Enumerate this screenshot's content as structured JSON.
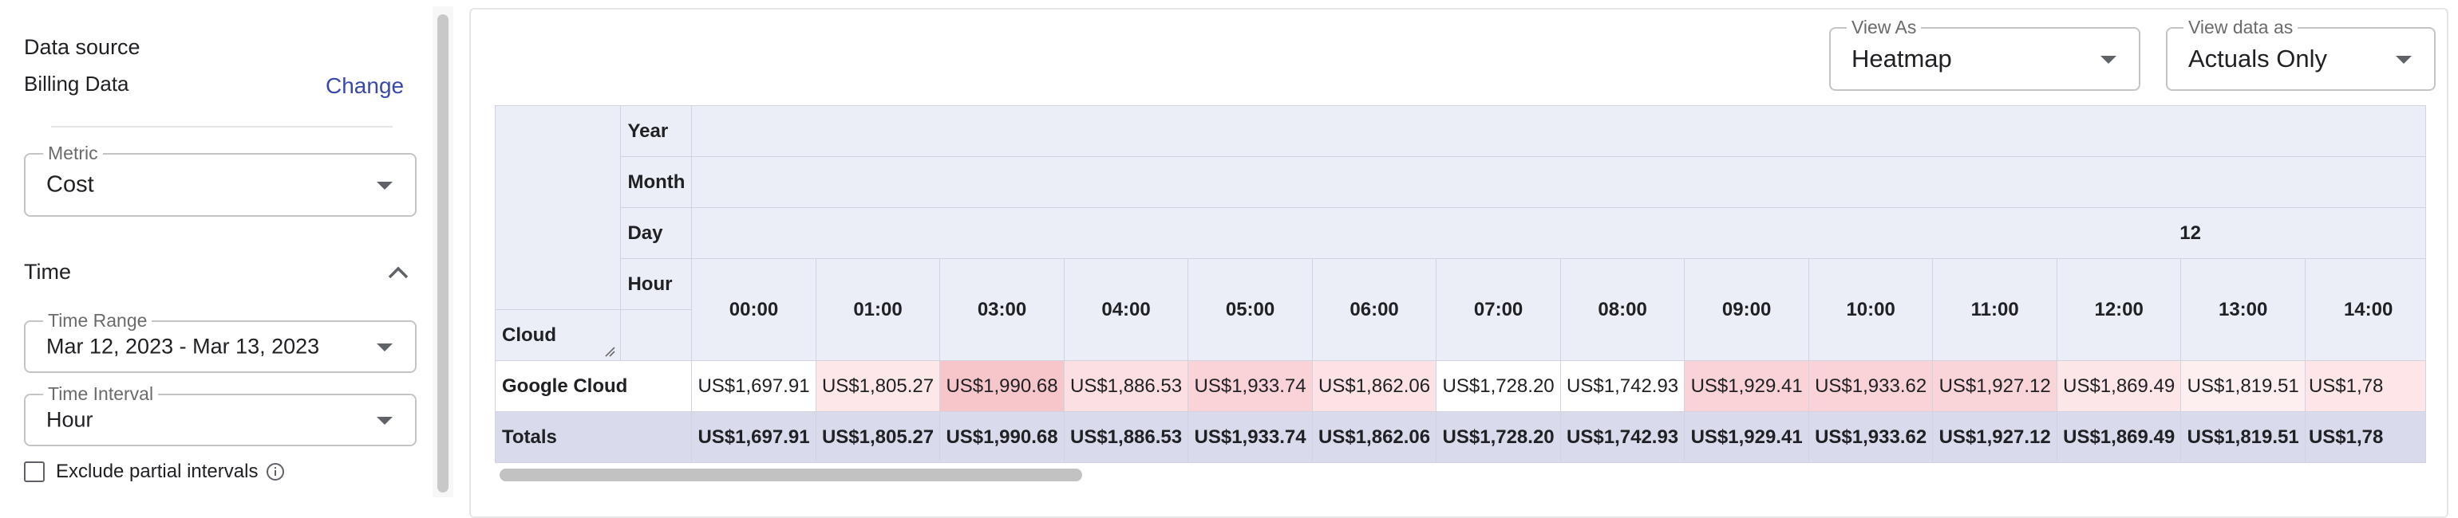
{
  "left_panel": {
    "data_source": {
      "title": "Data source",
      "value": "Billing Data",
      "change_label": "Change"
    },
    "metric": {
      "label": "Metric",
      "value": "Cost"
    },
    "time": {
      "title": "Time",
      "range": {
        "label": "Time Range",
        "value": "Mar 12, 2023 - Mar 13, 2023"
      },
      "interval": {
        "label": "Time Interval",
        "value": "Hour"
      },
      "exclude_partial": {
        "label": "Exclude partial intervals",
        "checked": false
      }
    }
  },
  "controls": {
    "view_as": {
      "label": "View As",
      "value": "Heatmap"
    },
    "view_data_as": {
      "label": "View data as",
      "value": "Actuals Only"
    }
  },
  "pivot": {
    "column_dims": [
      "Year",
      "Month",
      "Day",
      "Hour"
    ],
    "row_dim": "Cloud",
    "day_value": "12",
    "hours": [
      "00:00",
      "01:00",
      "03:00",
      "04:00",
      "05:00",
      "06:00",
      "07:00",
      "08:00",
      "09:00",
      "10:00",
      "11:00",
      "12:00",
      "13:00",
      "14:00"
    ],
    "rows": [
      {
        "label": "Google Cloud",
        "values": [
          "US$1,697.91",
          "US$1,805.27",
          "US$1,990.68",
          "US$1,886.53",
          "US$1,933.74",
          "US$1,862.06",
          "US$1,728.20",
          "US$1,742.93",
          "US$1,929.41",
          "US$1,933.62",
          "US$1,927.12",
          "US$1,869.49",
          "US$1,819.51",
          "US$1,78"
        ]
      }
    ],
    "totals": {
      "label": "Totals",
      "values": [
        "US$1,697.91",
        "US$1,805.27",
        "US$1,990.68",
        "US$1,886.53",
        "US$1,933.74",
        "US$1,862.06",
        "US$1,728.20",
        "US$1,742.93",
        "US$1,929.41",
        "US$1,933.62",
        "US$1,927.12",
        "US$1,869.49",
        "US$1,819.51",
        "US$1,78"
      ]
    },
    "heat_colors": [
      "#ffffff",
      "#fde7e9",
      "#f7c6cb",
      "#fbdfe2",
      "#f9d3d7",
      "#fce2e5",
      "#ffffff",
      "#ffffff",
      "#f9d3d7",
      "#f9d3d7",
      "#f9d5d9",
      "#fde6e8",
      "#fdeff0",
      "#fde5e8"
    ]
  }
}
